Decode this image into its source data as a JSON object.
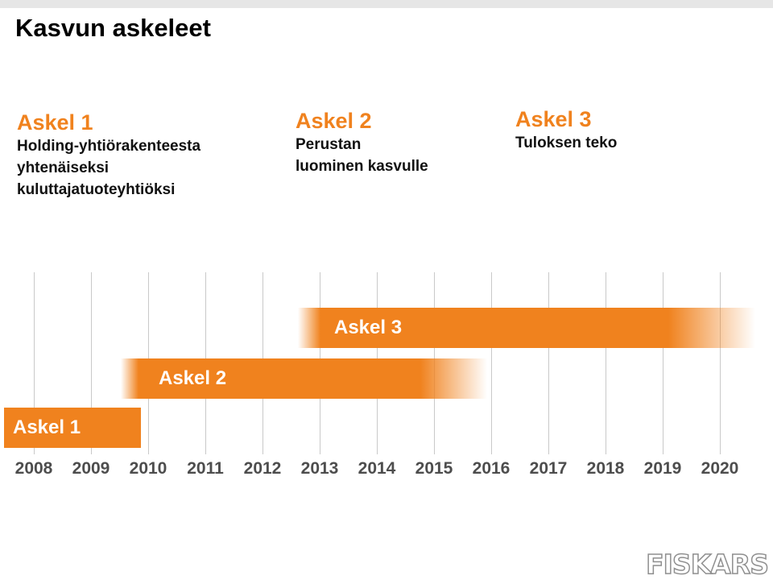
{
  "title": "Kasvun askeleet",
  "steps": [
    {
      "heading": "Askel 1",
      "description": "Holding-yhtiörakenteesta\nyhtenäiseksi\nkuluttajatuoteyhtiöksi"
    },
    {
      "heading": "Askel 2",
      "description": "Perustan\nluominen kasvulle"
    },
    {
      "heading": "Askel 3",
      "description": "Tuloksen teko"
    }
  ],
  "timeline": {
    "years": [
      "2008",
      "2009",
      "2010",
      "2011",
      "2012",
      "2013",
      "2014",
      "2015",
      "2016",
      "2017",
      "2018",
      "2019",
      "2020"
    ],
    "bars": [
      {
        "label": "Askel 1"
      },
      {
        "label": "Askel 2"
      },
      {
        "label": "Askel 3"
      }
    ],
    "bar_color": "#f0821e"
  },
  "brand": {
    "logo_text": "FISKARS"
  },
  "colors": {
    "accent": "#f0821e",
    "year_text": "#4d4d4d",
    "title": "#000000"
  }
}
